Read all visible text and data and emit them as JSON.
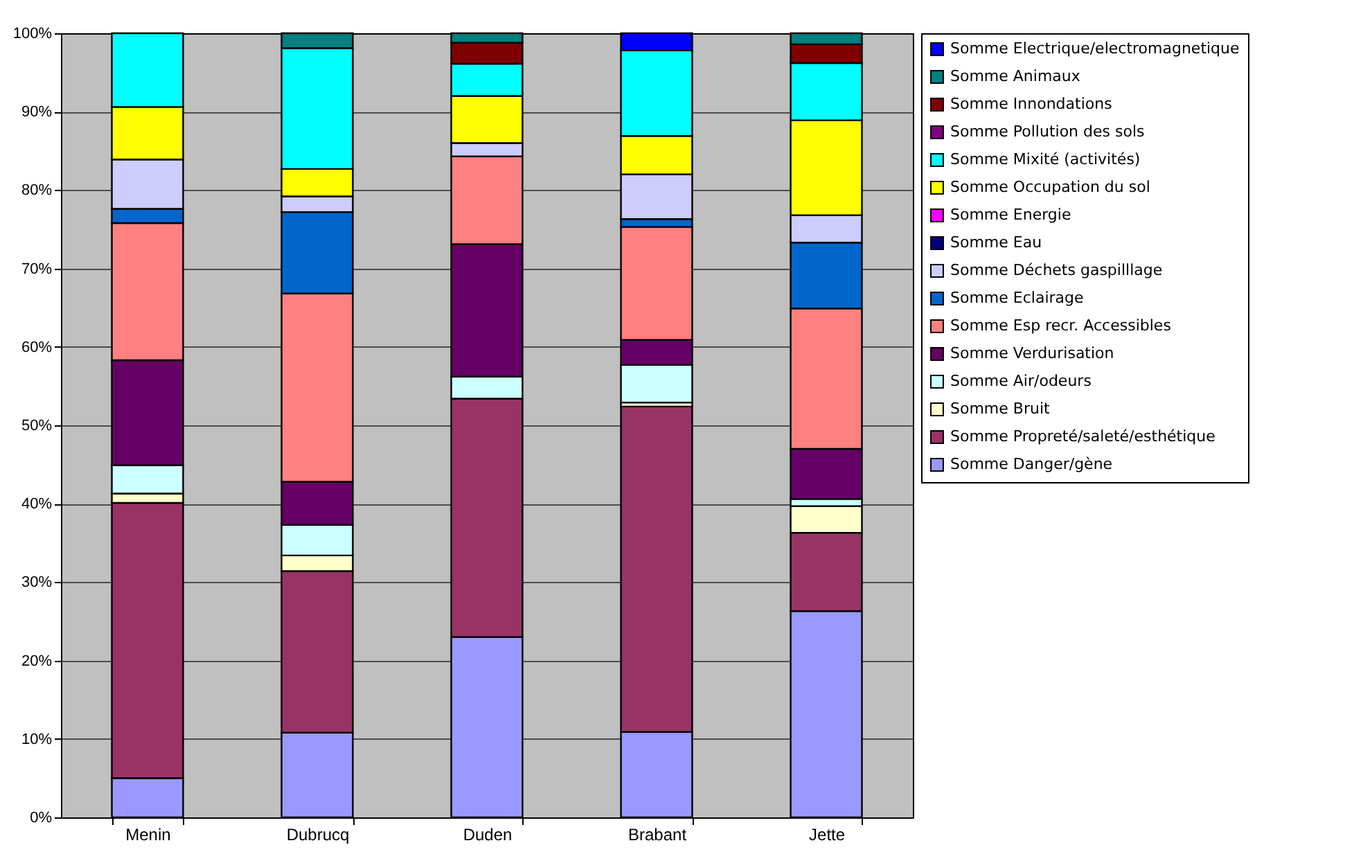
{
  "chart_data": {
    "type": "bar",
    "stacked": true,
    "categories": [
      "Menin",
      "Dubrucq",
      "Duden",
      "Brabant",
      "Jette"
    ],
    "ylim": [
      0,
      100
    ],
    "yticks": [
      {
        "value": 0,
        "label": "0%"
      },
      {
        "value": 10,
        "label": "10%"
      },
      {
        "value": 20,
        "label": "20%"
      },
      {
        "value": 30,
        "label": "30%"
      },
      {
        "value": 40,
        "label": "40%"
      },
      {
        "value": 50,
        "label": "50%"
      },
      {
        "value": 60,
        "label": "60%"
      },
      {
        "value": 70,
        "label": "70%"
      },
      {
        "value": 80,
        "label": "80%"
      },
      {
        "value": 90,
        "label": "90%"
      },
      {
        "value": 100,
        "label": "100%"
      }
    ],
    "grid": "y",
    "legend": "right",
    "series": [
      {
        "name": "Somme Danger/gène",
        "color": "#9999ff",
        "values": [
          5.0,
          10.8,
          23.0,
          10.9,
          26.3
        ]
      },
      {
        "name": "Somme Propreté/saleté/esthétique",
        "color": "#993366",
        "values": [
          35.1,
          20.6,
          30.4,
          41.5,
          10.0
        ]
      },
      {
        "name": "Somme Bruit",
        "color": "#ffffcc",
        "values": [
          1.2,
          2.0,
          0,
          0.5,
          3.4
        ]
      },
      {
        "name": "Somme Air/odeurs",
        "color": "#ccffff",
        "values": [
          3.6,
          3.9,
          2.8,
          4.8,
          0.9
        ]
      },
      {
        "name": "Somme Verdurisation",
        "color": "#660066",
        "values": [
          13.4,
          5.5,
          16.9,
          3.2,
          6.4
        ]
      },
      {
        "name": "Somme Esp recr. Accessibles",
        "color": "#ff8080",
        "values": [
          17.5,
          24.0,
          11.2,
          14.4,
          17.9
        ]
      },
      {
        "name": "Somme Eclairage",
        "color": "#0066cc",
        "values": [
          1.8,
          10.4,
          0,
          1.0,
          8.4
        ]
      },
      {
        "name": "Somme Déchets gaspilllage",
        "color": "#ccccff",
        "values": [
          6.3,
          2.0,
          1.7,
          5.7,
          3.5
        ]
      },
      {
        "name": "Somme Eau",
        "color": "#000080",
        "values": [
          0,
          0,
          0,
          0,
          0
        ]
      },
      {
        "name": "Somme Energie",
        "color": "#ff00ff",
        "values": [
          0,
          0,
          0,
          0,
          0
        ]
      },
      {
        "name": "Somme Occupation du sol",
        "color": "#ffff00",
        "values": [
          6.7,
          3.5,
          6.0,
          4.9,
          12.1
        ]
      },
      {
        "name": "Somme Mixité (activités)",
        "color": "#00ffff",
        "values": [
          9.4,
          15.4,
          4.1,
          10.9,
          7.3
        ]
      },
      {
        "name": "Somme Pollution des sols",
        "color": "#800080",
        "values": [
          0,
          0,
          0,
          0,
          0
        ]
      },
      {
        "name": "Somme Innondations",
        "color": "#800000",
        "values": [
          0,
          0,
          2.7,
          0,
          2.4
        ]
      },
      {
        "name": "Somme Animaux",
        "color": "#008080",
        "values": [
          0,
          1.9,
          1.2,
          0,
          1.4
        ]
      },
      {
        "name": "Somme Electrique/electromagnetique",
        "color": "#0000ff",
        "values": [
          0,
          0,
          0,
          2.2,
          0
        ]
      }
    ]
  }
}
